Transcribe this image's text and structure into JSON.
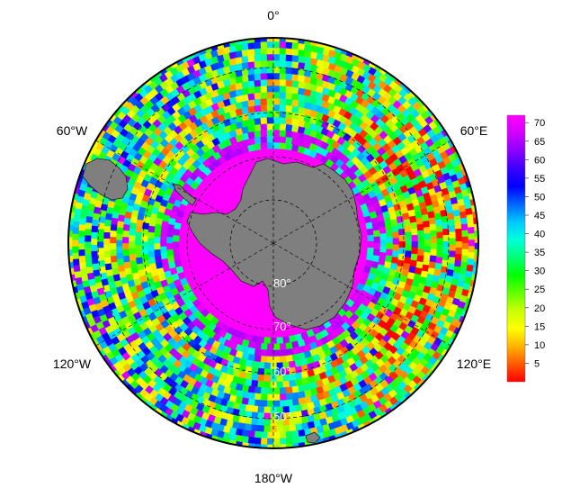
{
  "map": {
    "projection": "south-polar-stereographic",
    "longitude_labels": {
      "top": "0°",
      "upper_left": "60°W",
      "upper_right": "60°E",
      "lower_left": "120°W",
      "lower_right": "120°E",
      "bottom": "180°W"
    },
    "latitude_labels": [
      "80°",
      "70°",
      "60°",
      "50°"
    ],
    "land_color": "#7f7f7f",
    "grid_style": "dashed"
  },
  "colorbar": {
    "ticks": [
      "70",
      "65",
      "60",
      "55",
      "50",
      "45",
      "40",
      "35",
      "30",
      "25",
      "20",
      "15",
      "10",
      "5"
    ],
    "range": [
      0,
      72
    ],
    "colors": [
      "#ff0000",
      "#ff5a00",
      "#ffb400",
      "#ffff00",
      "#c8ff00",
      "#64ff00",
      "#00ff00",
      "#00ff78",
      "#00ffdc",
      "#00c8ff",
      "#0064ff",
      "#0000ff",
      "#3c00ff",
      "#8c00ff",
      "#d200ff",
      "#ff00ff"
    ]
  }
}
